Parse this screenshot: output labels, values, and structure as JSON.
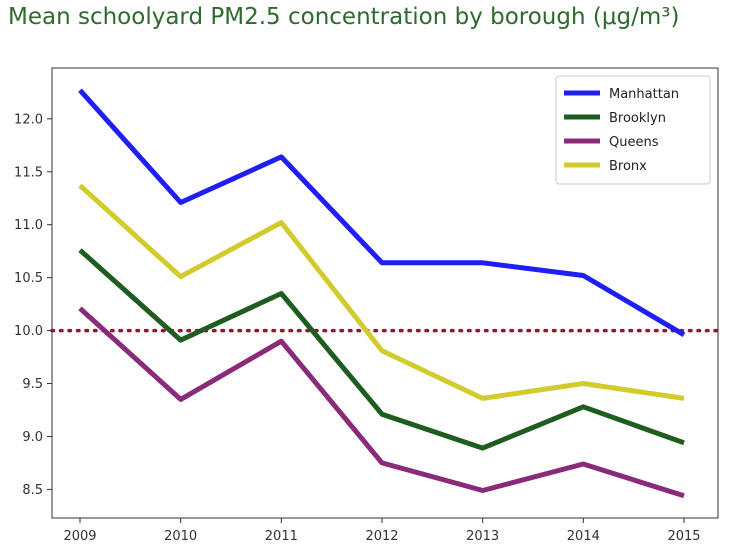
{
  "chart_data": {
    "type": "line",
    "title": "Mean schoolyard PM2.5 concentration by borough (μg/m³)",
    "x": [
      "2009",
      "2010",
      "2011",
      "2012",
      "2013",
      "2014",
      "2015"
    ],
    "series": [
      {
        "name": "Manhattan",
        "color": "#1f1ff5",
        "values": [
          12.27,
          11.21,
          11.64,
          10.64,
          10.64,
          10.52,
          9.96
        ]
      },
      {
        "name": "Brooklyn",
        "color": "#1f5c1f",
        "values": [
          10.76,
          9.91,
          10.35,
          9.21,
          8.89,
          9.28,
          8.94
        ]
      },
      {
        "name": "Queens",
        "color": "#8a2a7a",
        "values": [
          10.21,
          9.35,
          9.9,
          8.75,
          8.49,
          8.74,
          8.44
        ]
      },
      {
        "name": "Bronx",
        "color": "#d2cb2d",
        "values": [
          11.37,
          10.51,
          11.02,
          9.81,
          9.36,
          9.5,
          9.36
        ]
      }
    ],
    "reference_line": {
      "y": 10.0,
      "color": "#8b1a2a",
      "style": "dotted"
    },
    "yticks": [
      "8.5",
      "9.0",
      "9.5",
      "10.0",
      "10.5",
      "11.0",
      "11.5",
      "12.0"
    ],
    "ylim": [
      8.23,
      12.48
    ],
    "xlabel": "",
    "ylabel": "",
    "grid": false,
    "legend_position": "top-right"
  }
}
